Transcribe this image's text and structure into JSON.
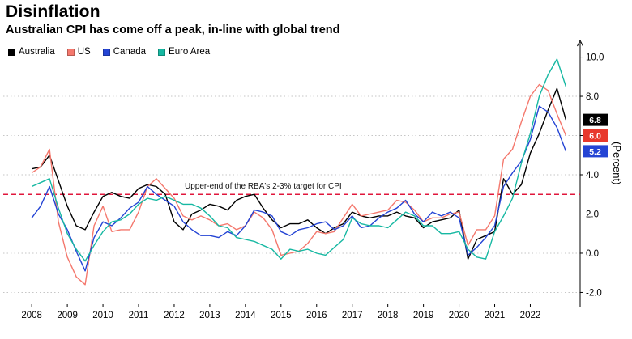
{
  "chart_data": {
    "type": "line",
    "title": "Disinflation",
    "subtitle": "Australian CPI has come off a peak, in-line with global trend",
    "ylabel": "(Percent)",
    "ylim": [
      -2.6,
      10.6
    ],
    "yticks": [
      -2.0,
      0.0,
      2.0,
      4.0,
      6.0,
      8.0,
      10.0
    ],
    "xlim": [
      2007.2,
      2023.4
    ],
    "xticks": [
      2008,
      2009,
      2010,
      2011,
      2012,
      2013,
      2014,
      2015,
      2016,
      2017,
      2018,
      2019,
      2020,
      2021,
      2022
    ],
    "grid_color": "#c6c6c6",
    "legend_position": "top-left",
    "target_line": {
      "value": 3.0,
      "label": "Upper-end of the RBA's 2-3% target for CPI",
      "color": "#e0173c"
    },
    "x": [
      2008,
      2008.25,
      2008.5,
      2008.75,
      2009,
      2009.25,
      2009.5,
      2009.75,
      2010,
      2010.25,
      2010.5,
      2010.75,
      2011,
      2011.25,
      2011.5,
      2011.75,
      2012,
      2012.25,
      2012.5,
      2012.75,
      2013,
      2013.25,
      2013.5,
      2013.75,
      2014,
      2014.25,
      2014.5,
      2014.75,
      2015,
      2015.25,
      2015.5,
      2015.75,
      2016,
      2016.25,
      2016.5,
      2016.75,
      2017,
      2017.25,
      2017.5,
      2017.75,
      2018,
      2018.25,
      2018.5,
      2018.75,
      2019,
      2019.25,
      2019.5,
      2019.75,
      2020,
      2020.25,
      2020.5,
      2020.75,
      2021,
      2021.25,
      2021.5,
      2021.75,
      2022,
      2022.25,
      2022.5,
      2022.75,
      2023
    ],
    "series": [
      {
        "name": "Australia",
        "color": "#000000",
        "end_label": "6.8",
        "end_label_bg": "#000000",
        "values": [
          4.3,
          4.4,
          5.0,
          3.7,
          2.4,
          1.4,
          1.2,
          2.1,
          2.9,
          3.1,
          2.9,
          2.8,
          3.3,
          3.5,
          3.4,
          3.0,
          1.6,
          1.2,
          2.0,
          2.2,
          2.5,
          2.4,
          2.2,
          2.7,
          2.9,
          3.0,
          2.3,
          1.7,
          1.3,
          1.5,
          1.5,
          1.7,
          1.3,
          1.0,
          1.3,
          1.5,
          2.1,
          1.9,
          1.8,
          1.9,
          1.9,
          2.1,
          1.9,
          1.8,
          1.3,
          1.6,
          1.7,
          1.8,
          2.2,
          -0.3,
          0.7,
          0.9,
          1.1,
          3.8,
          3.0,
          3.5,
          5.1,
          6.1,
          7.3,
          8.4,
          6.8
        ]
      },
      {
        "name": "US",
        "color": "#f4786d",
        "end_label": "6.0",
        "end_label_bg": "#e8392d",
        "values": [
          4.1,
          4.4,
          5.3,
          1.6,
          -0.2,
          -1.2,
          -1.6,
          1.4,
          2.4,
          1.1,
          1.2,
          1.2,
          2.1,
          3.4,
          3.8,
          3.3,
          2.8,
          1.9,
          1.7,
          1.9,
          1.7,
          1.4,
          1.5,
          1.2,
          1.4,
          2.1,
          1.8,
          1.2,
          -0.1,
          0.0,
          0.1,
          0.5,
          1.1,
          1.0,
          1.1,
          1.8,
          2.5,
          1.9,
          2.0,
          2.1,
          2.2,
          2.7,
          2.6,
          2.2,
          1.6,
          1.8,
          1.8,
          2.0,
          2.1,
          0.4,
          1.2,
          1.2,
          1.9,
          4.8,
          5.3,
          6.7,
          8.0,
          8.6,
          8.3,
          7.1,
          6.0
        ]
      },
      {
        "name": "Canada",
        "color": "#2444d4",
        "end_label": "5.2",
        "end_label_bg": "#2444d4",
        "values": [
          1.8,
          2.4,
          3.4,
          2.0,
          1.2,
          0.1,
          -0.9,
          0.8,
          1.6,
          1.4,
          1.8,
          2.3,
          2.6,
          3.4,
          3.0,
          2.7,
          2.4,
          1.6,
          1.2,
          0.9,
          0.9,
          0.8,
          1.1,
          0.9,
          1.4,
          2.2,
          2.1,
          1.9,
          1.1,
          0.9,
          1.2,
          1.3,
          1.5,
          1.6,
          1.2,
          1.4,
          1.9,
          1.3,
          1.4,
          1.8,
          2.1,
          2.3,
          2.7,
          2.0,
          1.6,
          2.1,
          1.9,
          2.1,
          1.8,
          -0.1,
          0.3,
          0.8,
          1.4,
          3.4,
          4.1,
          4.7,
          5.8,
          7.5,
          7.2,
          6.4,
          5.2
        ]
      },
      {
        "name": "Euro Area",
        "color": "#16b8a2",
        "end_label": null,
        "end_label_bg": null,
        "values": [
          3.4,
          3.6,
          3.8,
          2.3,
          1.0,
          0.2,
          -0.4,
          0.4,
          1.1,
          1.6,
          1.7,
          2.0,
          2.5,
          2.8,
          2.7,
          2.9,
          2.7,
          2.5,
          2.5,
          2.3,
          1.9,
          1.4,
          1.3,
          0.8,
          0.7,
          0.6,
          0.4,
          0.2,
          -0.3,
          0.2,
          0.1,
          0.2,
          0.0,
          -0.1,
          0.3,
          0.7,
          1.8,
          1.5,
          1.4,
          1.4,
          1.3,
          1.7,
          2.1,
          1.9,
          1.4,
          1.4,
          1.0,
          1.0,
          1.1,
          0.2,
          -0.2,
          -0.3,
          1.1,
          1.9,
          2.8,
          4.6,
          6.1,
          8.0,
          9.1,
          9.9,
          8.5
        ]
      }
    ]
  }
}
